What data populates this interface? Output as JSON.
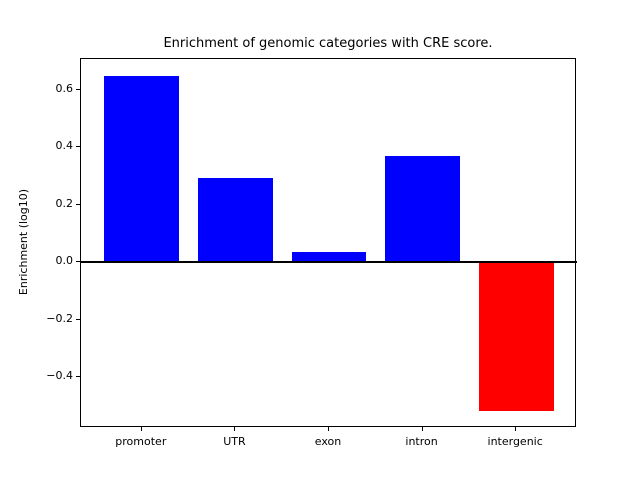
{
  "figure": {
    "title": "Enrichment of genomic categories with CRE score.",
    "ylabel": "Enrichment (log10)"
  },
  "chart_data": {
    "type": "bar",
    "title": "Enrichment of genomic categories with CRE score.",
    "xlabel": "",
    "ylabel": "Enrichment (log10)",
    "categories": [
      "promoter",
      "UTR",
      "exon",
      "intron",
      "intergenic"
    ],
    "values": [
      0.65,
      0.295,
      0.035,
      0.37,
      -0.52
    ],
    "bar_colors": [
      "#0000ff",
      "#0000ff",
      "#0000ff",
      "#0000ff",
      "#ff0000"
    ],
    "positive_color": "#0000ff",
    "negative_color": "#ff0000",
    "yticks": [
      -0.4,
      -0.2,
      0.0,
      0.2,
      0.4,
      0.6
    ],
    "ytick_labels": [
      "−0.4",
      "−0.2",
      "0.0",
      "0.2",
      "0.4",
      "0.6"
    ],
    "ylim": [
      -0.578,
      0.708
    ],
    "xlim": [
      -0.65,
      4.65
    ],
    "bar_width": 0.8,
    "zero_line": true,
    "grid": false,
    "legend_position": "none",
    "axes_background": "#ffffff",
    "frame_color": "#000000"
  }
}
